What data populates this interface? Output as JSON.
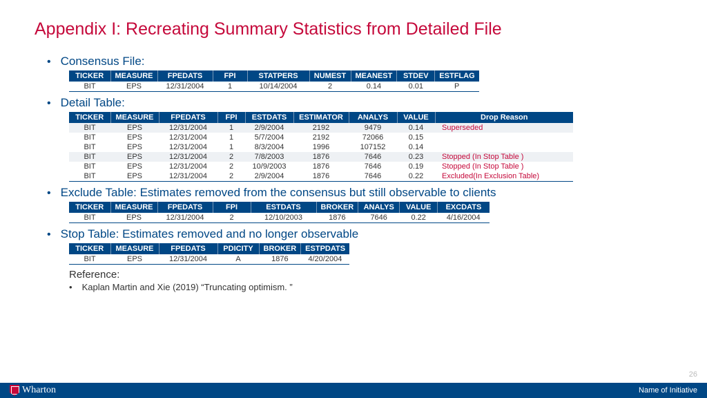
{
  "title": "Appendix I: Recreating Summary Statistics from Detailed File",
  "sections": {
    "consensus": {
      "label": "Consensus File:",
      "headers": [
        "TICKER",
        "MEASURE",
        "FPEDATS",
        "FPI",
        "STATPERS",
        "NUMEST",
        "MEANEST",
        "STDEV",
        "ESTFLAG"
      ],
      "rows": [
        [
          "BIT",
          "EPS",
          "12/31/2004",
          "1",
          "10/14/2004",
          "2",
          "0.14",
          "0.01",
          "P"
        ]
      ]
    },
    "detail": {
      "label": "Detail Table:",
      "headers": [
        "TICKER",
        "MEASURE",
        "FPEDATS",
        "FPI",
        "ESTDATS",
        "ESTIMATOR",
        "ANALYS",
        "VALUE",
        "Drop Reason"
      ],
      "rows": [
        {
          "c": [
            "BIT",
            "EPS",
            "12/31/2004",
            "1",
            "2/9/2004",
            "2192",
            "9479",
            "0.14"
          ],
          "drop": "Superseded",
          "shade": true
        },
        {
          "c": [
            "BIT",
            "EPS",
            "12/31/2004",
            "1",
            "5/7/2004",
            "2192",
            "72066",
            "0.15"
          ],
          "drop": "",
          "shade": false
        },
        {
          "c": [
            "BIT",
            "EPS",
            "12/31/2004",
            "1",
            "8/3/2004",
            "1996",
            "107152",
            "0.14"
          ],
          "drop": "",
          "shade": false
        },
        {
          "c": [
            "BIT",
            "EPS",
            "12/31/2004",
            "2",
            "7/8/2003",
            "1876",
            "7646",
            "0.23"
          ],
          "drop": "Stopped (In Stop Table )",
          "shade": true
        },
        {
          "c": [
            "BIT",
            "EPS",
            "12/31/2004",
            "2",
            "10/9/2003",
            "1876",
            "7646",
            "0.19"
          ],
          "drop": "Stopped (In Stop Table )",
          "shade": false
        },
        {
          "c": [
            "BIT",
            "EPS",
            "12/31/2004",
            "2",
            "2/9/2004",
            "1876",
            "7646",
            "0.22"
          ],
          "drop": "Excluded(In Exclusion Table)",
          "shade": false
        }
      ]
    },
    "exclude": {
      "label": "Exclude Table: Estimates removed from the consensus but still observable to clients",
      "headers": [
        "TICKER",
        "MEASURE",
        "FPEDATS",
        "FPI",
        "ESTDATS",
        "BROKER",
        "ANALYS",
        "VALUE",
        "EXCDATS"
      ],
      "rows": [
        [
          "BIT",
          "EPS",
          "12/31/2004",
          "2",
          "12/10/2003",
          "1876",
          "7646",
          "0.22",
          "4/16/2004"
        ]
      ]
    },
    "stop": {
      "label": "Stop Table: Estimates removed and no longer observable",
      "headers": [
        "TICKER",
        "MEASURE",
        "FPEDATS",
        "PDICITY",
        "BROKER",
        "ESTPDATS"
      ],
      "rows": [
        [
          "BIT",
          "EPS",
          "12/31/2004",
          "A",
          "1876",
          "4/20/2004"
        ]
      ]
    }
  },
  "reference": {
    "label": "Reference:",
    "item": "Kaplan Martin and Xie (2019) “Truncating optimism. ”"
  },
  "footer": {
    "brand": "Wharton",
    "right": "Name of Initiative"
  },
  "pagenum": "26",
  "colors": {
    "accent": "#c5093b",
    "primary": "#004785"
  },
  "colwidths": {
    "consensus": [
      60,
      68,
      80,
      50,
      90,
      60,
      65,
      55,
      62
    ],
    "detail": [
      60,
      70,
      85,
      40,
      70,
      80,
      70,
      55,
      200
    ],
    "exclude": [
      60,
      68,
      80,
      55,
      95,
      60,
      60,
      55,
      75
    ],
    "stop": [
      60,
      70,
      85,
      60,
      60,
      70
    ]
  }
}
